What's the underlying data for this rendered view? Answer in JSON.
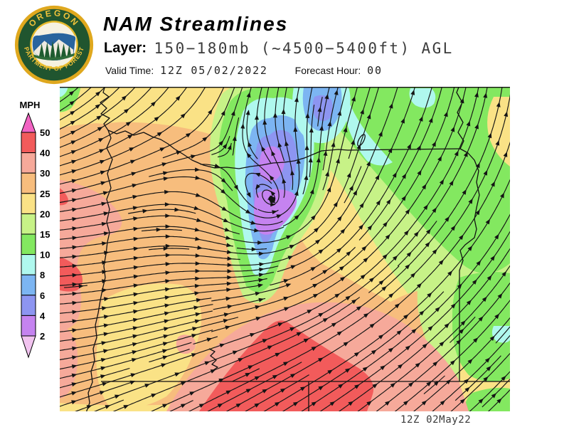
{
  "header": {
    "title": "NAM Streamlines",
    "layer_label": "Layer:",
    "layer_value": "150−180mb (~4500−5400ft) AGL",
    "valid_label": "Valid Time:",
    "valid_value": "12Z 05/02/2022",
    "forecast_label": "Forecast Hour:",
    "forecast_value": "00"
  },
  "logo": {
    "top_text": "OREGON",
    "bottom_text": "DEPARTMENT OF FORESTRY",
    "ring_color": "#20552F",
    "gold_color": "#DFA81E",
    "emblem_blue": "#28649E"
  },
  "legend": {
    "unit": "MPH",
    "ticks": [
      "50",
      "40",
      "30",
      "25",
      "20",
      "15",
      "10",
      "8",
      "6",
      "4",
      "2"
    ],
    "band_colors": [
      "#F263C3",
      "#F25B5B",
      "#F6A99A",
      "#F7BD7D",
      "#FAE286",
      "#C7F287",
      "#83E860",
      "#AFF8EE",
      "#7CB5F2",
      "#8D95F1",
      "#C583F0",
      "#F1C3EF"
    ]
  },
  "map": {
    "timestamp": "12Z 02May22",
    "palette": {
      "mag": "#F263C3",
      "red": "#F25B5B",
      "sal": "#F6A99A",
      "org": "#F7BD7D",
      "yel": "#FAE286",
      "ygr": "#C7F287",
      "grn": "#83E860",
      "cyn": "#AFF8EE",
      "lbl": "#7CB5F2",
      "per": "#8D95F1",
      "vio": "#C583F0",
      "pnk": "#F1C3EF",
      "line": "#141414",
      "geo": "#101010"
    }
  }
}
